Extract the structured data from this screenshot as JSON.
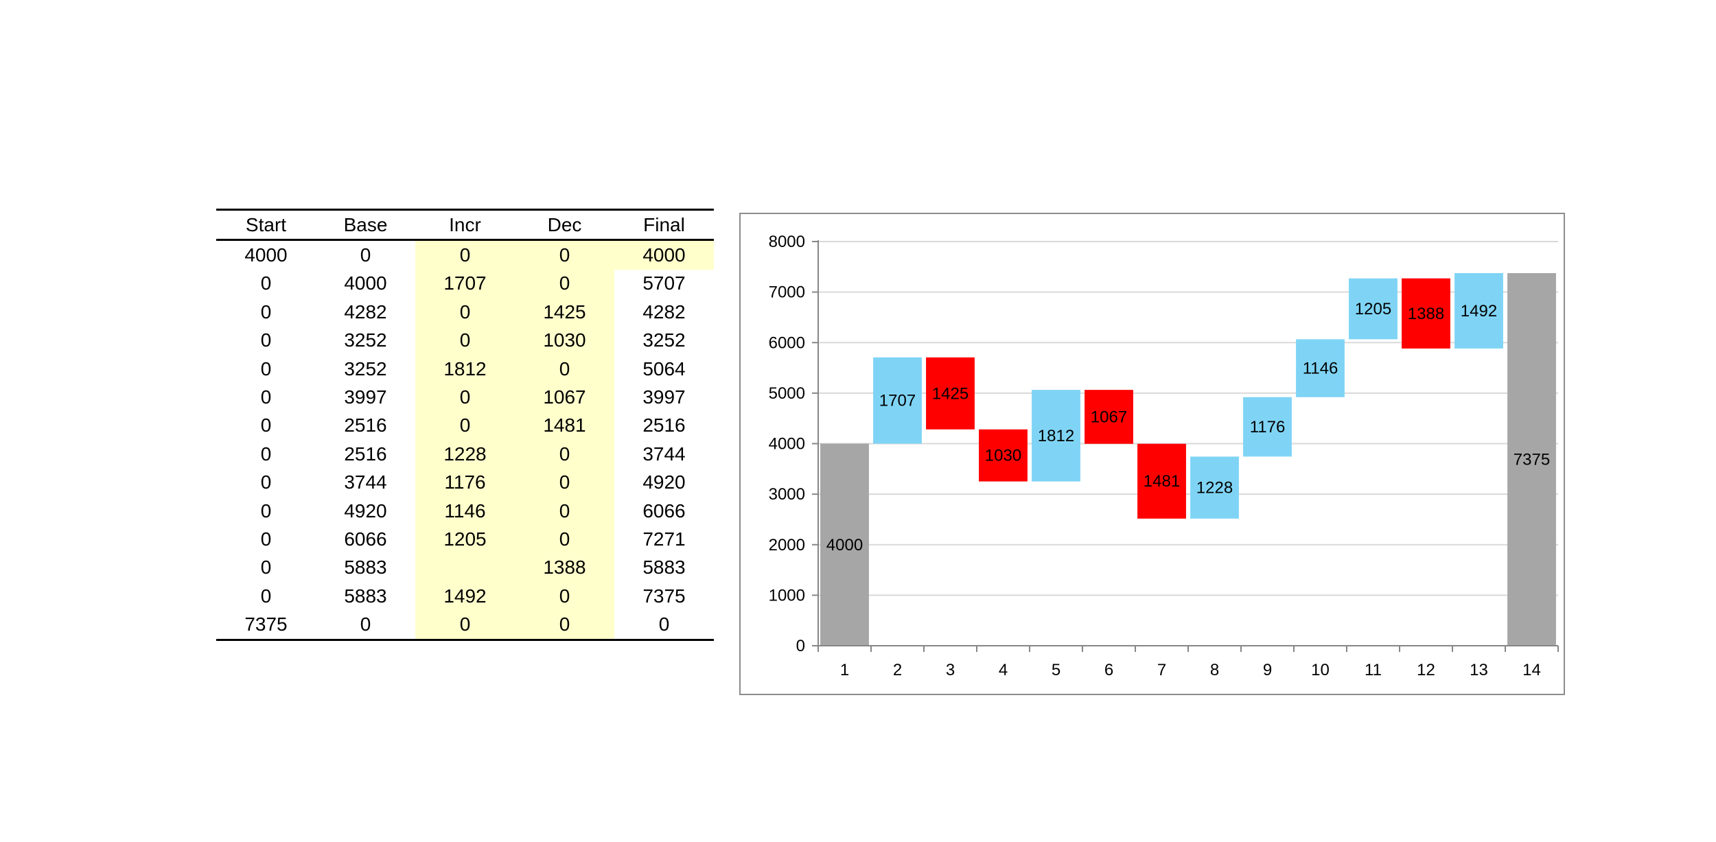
{
  "table": {
    "headers": [
      "Start",
      "Base",
      "Incr",
      "Dec",
      "Final"
    ],
    "rows": [
      [
        "4000",
        "0",
        "0",
        "0",
        "4000"
      ],
      [
        "0",
        "4000",
        "1707",
        "0",
        "5707"
      ],
      [
        "0",
        "4282",
        "0",
        "1425",
        "4282"
      ],
      [
        "0",
        "3252",
        "0",
        "1030",
        "3252"
      ],
      [
        "0",
        "3252",
        "1812",
        "0",
        "5064"
      ],
      [
        "0",
        "3997",
        "0",
        "1067",
        "3997"
      ],
      [
        "0",
        "2516",
        "0",
        "1481",
        "2516"
      ],
      [
        "0",
        "2516",
        "1228",
        "0",
        "3744"
      ],
      [
        "0",
        "3744",
        "1176",
        "0",
        "4920"
      ],
      [
        "0",
        "4920",
        "1146",
        "0",
        "6066"
      ],
      [
        "0",
        "6066",
        "1205",
        "0",
        "7271"
      ],
      [
        "0",
        "5883",
        "",
        "1388",
        "5883"
      ],
      [
        "0",
        "5883",
        "1492",
        "0",
        "7375"
      ],
      [
        "7375",
        "0",
        "0",
        "0",
        "0"
      ]
    ]
  },
  "chart_data": {
    "type": "bar",
    "subtype": "waterfall",
    "categories": [
      "1",
      "2",
      "3",
      "4",
      "5",
      "6",
      "7",
      "8",
      "9",
      "10",
      "11",
      "12",
      "13",
      "14"
    ],
    "series": [
      {
        "name": "Start",
        "color": "#a6a6a6",
        "base": [
          0,
          0,
          0,
          0,
          0,
          0,
          0,
          0,
          0,
          0,
          0,
          0,
          0,
          0
        ],
        "values": [
          4000,
          0,
          0,
          0,
          0,
          0,
          0,
          0,
          0,
          0,
          0,
          0,
          0,
          7375
        ]
      },
      {
        "name": "Incr",
        "color": "#7fd4f5",
        "base": [
          0,
          4000,
          0,
          0,
          3252,
          0,
          0,
          2516,
          3744,
          4920,
          6066,
          0,
          5883,
          0
        ],
        "values": [
          0,
          1707,
          0,
          0,
          1812,
          0,
          0,
          1228,
          1176,
          1146,
          1205,
          0,
          1492,
          0
        ]
      },
      {
        "name": "Dec",
        "color": "#ff0000",
        "base": [
          0,
          0,
          4282,
          3252,
          0,
          3997,
          2516,
          0,
          0,
          0,
          0,
          5883,
          0,
          0
        ],
        "values": [
          0,
          0,
          1425,
          1030,
          0,
          1067,
          1481,
          0,
          0,
          0,
          0,
          1388,
          0,
          0
        ]
      }
    ],
    "data_labels": [
      "4000",
      "1707",
      "1425",
      "1030",
      "1812",
      "1067",
      "1481",
      "1228",
      "1176",
      "1146",
      "1205",
      "1388",
      "1492",
      "7375"
    ],
    "ylim": [
      0,
      8000
    ],
    "yticks": [
      "0",
      "1000",
      "2000",
      "3000",
      "4000",
      "5000",
      "6000",
      "7000",
      "8000"
    ],
    "grid": true,
    "gridline_color": "#d9d9d9",
    "axis_color": "#868686",
    "legend": "none"
  }
}
